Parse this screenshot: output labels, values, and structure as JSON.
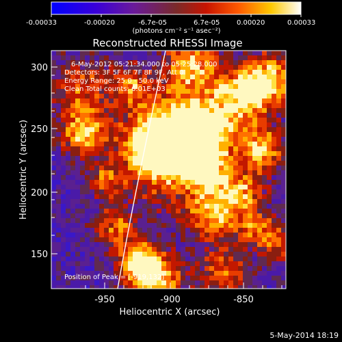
{
  "colorbar": {
    "ticks": [
      "-0.00033",
      "-0.00020",
      "-6.7e-05",
      "6.7e-05",
      "0.00020",
      "0.00033"
    ],
    "units": "(photons cm⁻² s⁻¹ asec⁻²)"
  },
  "plot": {
    "title": "Reconstructed RHESSI Image",
    "annotation": [
      "6-May-2012 05:21:34.000 to 05:25:28.000",
      "Detectors: 3F 5F 6F 7F 8F 9F, Att 0",
      "Energy Range: 25.0 - 50.0 keV",
      "Clean     Total counts: 6.01E+03"
    ],
    "peak_label": "Position of Peak = [-919,132]",
    "xlabel": "Heliocentric X (arcsec)",
    "ylabel": "Heliocentric Y (arcsec)",
    "xticks": [
      "-950",
      "-900",
      "-850"
    ],
    "yticks": [
      "150",
      "200",
      "250",
      "300"
    ],
    "xrange": [
      -995,
      -810
    ],
    "yrange": [
      120,
      312
    ]
  },
  "footer": {
    "date": "5-May-2014 18:19"
  }
}
